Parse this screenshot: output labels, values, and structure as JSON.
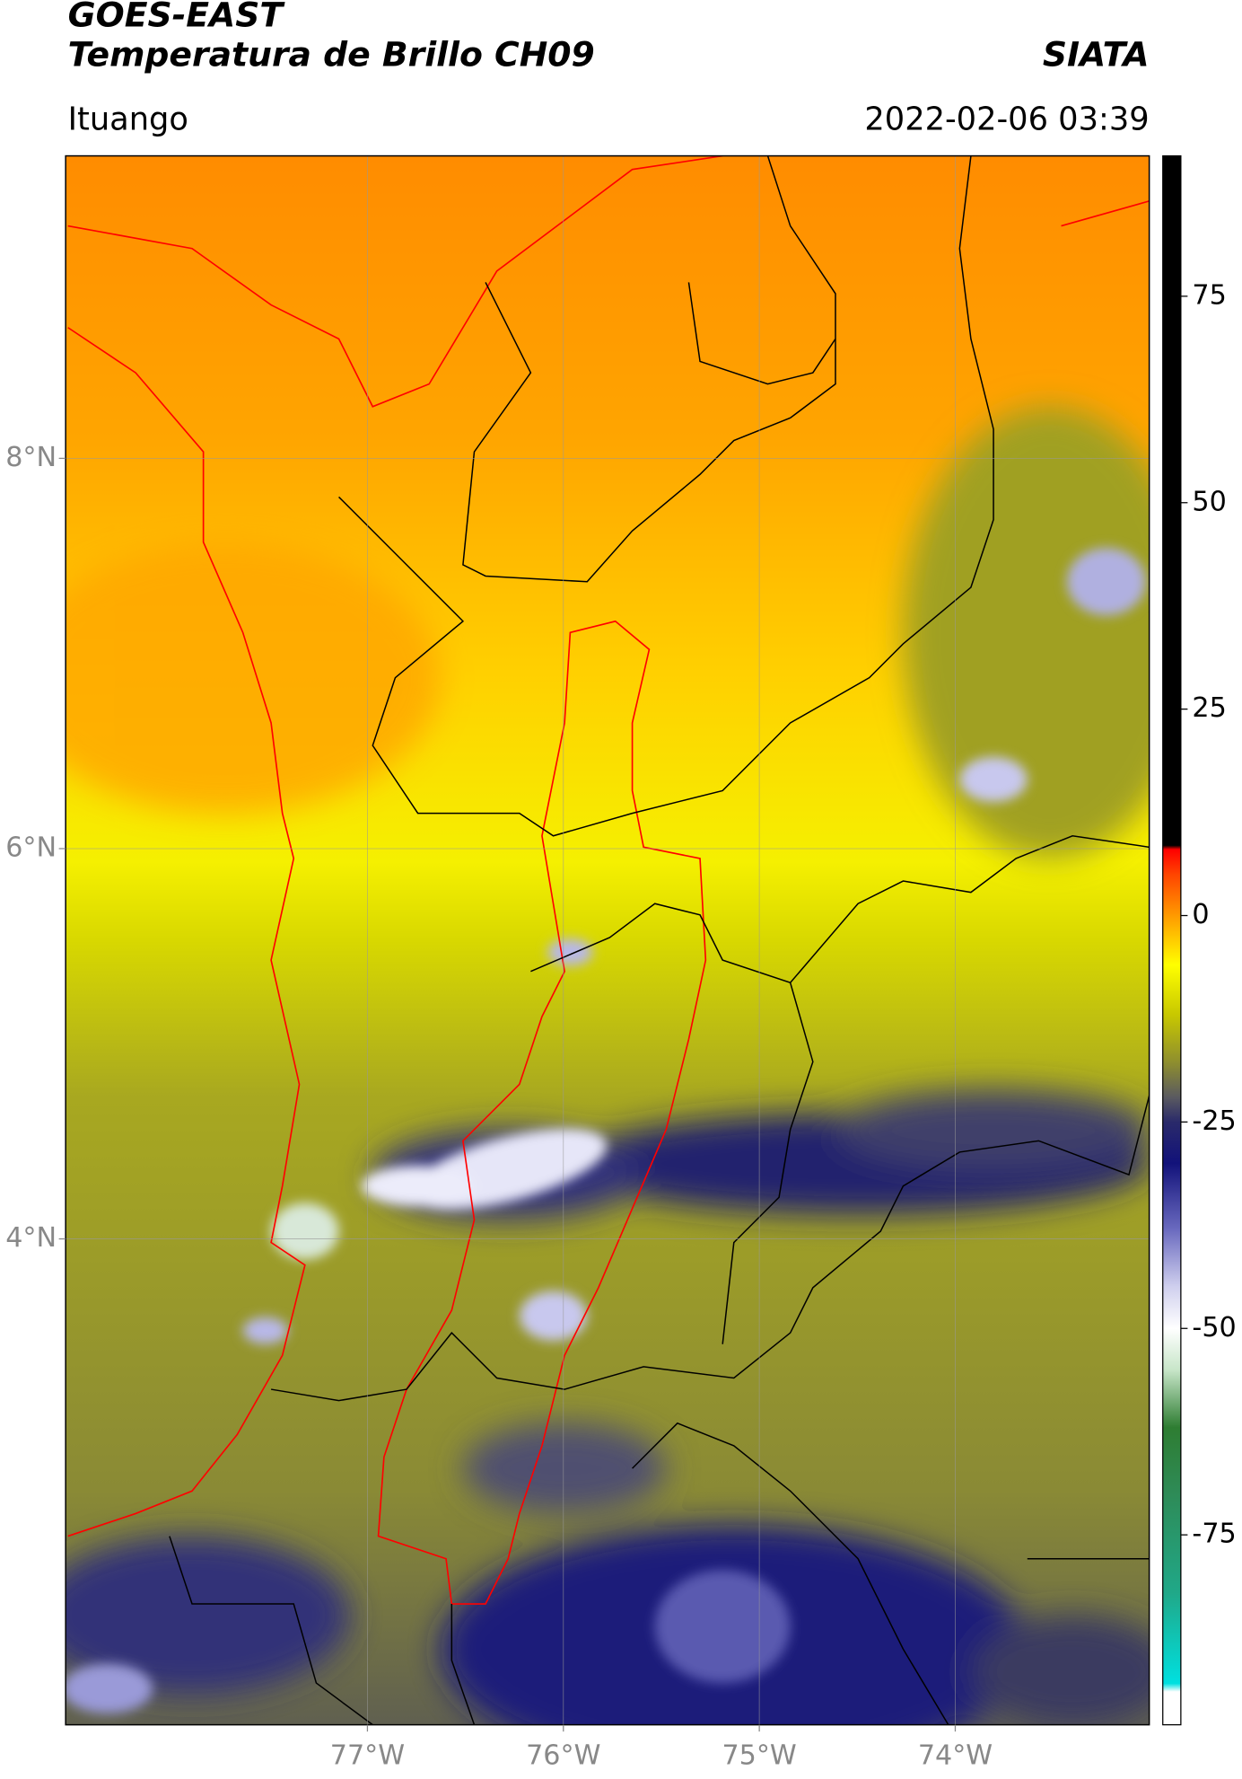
{
  "chart_data": {
    "type": "map",
    "title": "GOES-EAST",
    "subtitle": "Temperatura de Brillo CH09",
    "source": "SIATA",
    "region": "Ituango",
    "timestamp": "2022-02-06 03:39",
    "xlim": [
      -78.54,
      -73.01
    ],
    "ylim": [
      1.51,
      9.55
    ],
    "xticks": [
      {
        "value": -77,
        "label": "77°W"
      },
      {
        "value": -76,
        "label": "76°W"
      },
      {
        "value": -75,
        "label": "75°W"
      },
      {
        "value": -74,
        "label": "74°W"
      }
    ],
    "yticks": [
      {
        "value": 8,
        "label": "8°N"
      },
      {
        "value": 6,
        "label": "6°N"
      },
      {
        "value": 4,
        "label": "4°N"
      }
    ],
    "grid": true,
    "colorbar": {
      "lim": [
        -98,
        92
      ],
      "ticks": [
        75,
        50,
        25,
        0,
        -25,
        -50,
        -75
      ],
      "stops": [
        {
          "value": -98,
          "color": "#ffffff"
        },
        {
          "value": -94,
          "color": "#ffffff"
        },
        {
          "value": -93,
          "color": "#00e0e0"
        },
        {
          "value": -82,
          "color": "#20a888"
        },
        {
          "value": -70,
          "color": "#2e8b57"
        },
        {
          "value": -62,
          "color": "#2e7d32"
        },
        {
          "value": -55,
          "color": "#c8e6c9"
        },
        {
          "value": -50,
          "color": "#ffffff"
        },
        {
          "value": -45,
          "color": "#d0d0ee"
        },
        {
          "value": -38,
          "color": "#6a6abf"
        },
        {
          "value": -30,
          "color": "#12127a"
        },
        {
          "value": -25,
          "color": "#2a2a6a"
        },
        {
          "value": -22,
          "color": "#5a5a60"
        },
        {
          "value": -18,
          "color": "#8c8c30"
        },
        {
          "value": -12,
          "color": "#c8c800"
        },
        {
          "value": -6,
          "color": "#ffff00"
        },
        {
          "value": 0,
          "color": "#ff9a00"
        },
        {
          "value": 5,
          "color": "#ff4400"
        },
        {
          "value": 8,
          "color": "#ff0000"
        },
        {
          "value": 8.5,
          "color": "#000000"
        },
        {
          "value": 92,
          "color": "#000000"
        }
      ]
    }
  }
}
